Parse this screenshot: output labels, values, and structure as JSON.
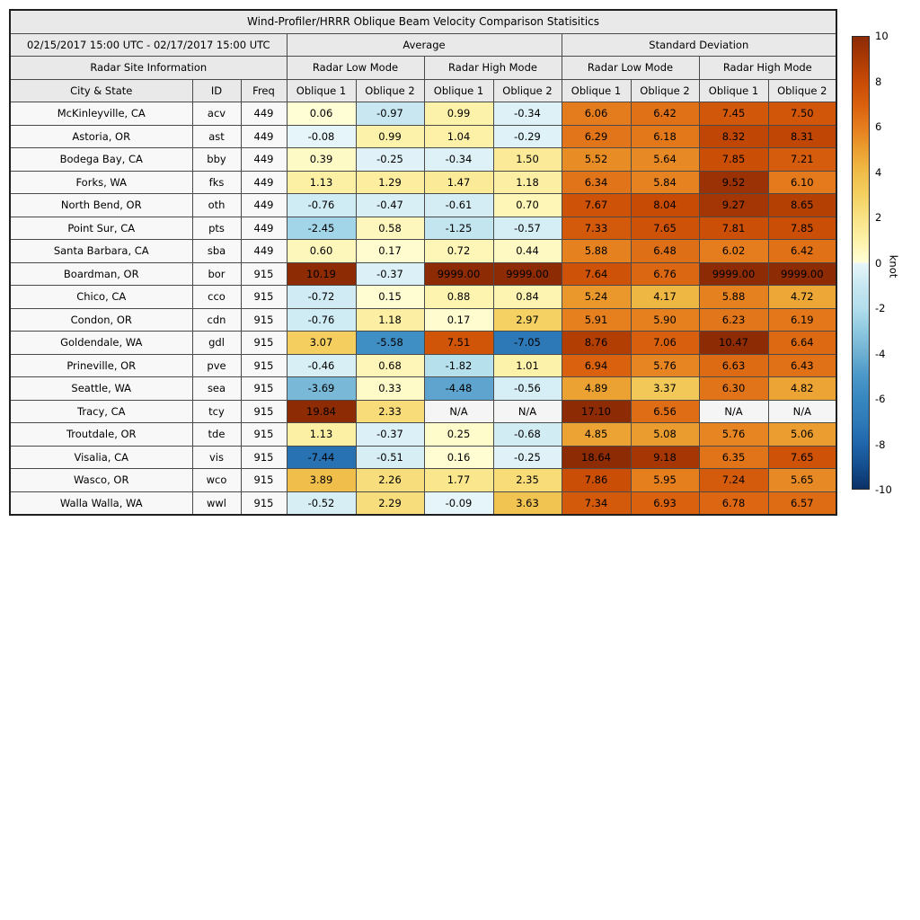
{
  "chart_data": {
    "type": "table",
    "title": "Wind-Profiler/HRRR Oblique Beam Velocity Comparison Statisitics",
    "date_range": "02/15/2017 15:00 UTC - 02/17/2017 15:00 UTC",
    "site_info_header": "Radar Site Information",
    "group_headers": {
      "average": "Average",
      "std": "Standard Deviation"
    },
    "mode_headers": [
      "Radar Low Mode",
      "Radar High Mode",
      "Radar Low Mode",
      "Radar High Mode"
    ],
    "column_headers": [
      "City & State",
      "ID",
      "Freq",
      "Oblique 1",
      "Oblique 2",
      "Oblique 1",
      "Oblique 2",
      "Oblique 1",
      "Oblique 2",
      "Oblique 1",
      "Oblique 2"
    ],
    "na_text": "N/A",
    "rows": [
      {
        "city": "McKinleyville, CA",
        "id": "acv",
        "freq": "449",
        "values": [
          "0.06",
          "-0.97",
          "0.99",
          "-0.34",
          "6.06",
          "6.42",
          "7.45",
          "7.50"
        ]
      },
      {
        "city": "Astoria, OR",
        "id": "ast",
        "freq": "449",
        "values": [
          "-0.08",
          "0.99",
          "1.04",
          "-0.29",
          "6.29",
          "6.18",
          "8.32",
          "8.31"
        ]
      },
      {
        "city": "Bodega Bay, CA",
        "id": "bby",
        "freq": "449",
        "values": [
          "0.39",
          "-0.25",
          "-0.34",
          "1.50",
          "5.52",
          "5.64",
          "7.85",
          "7.21"
        ]
      },
      {
        "city": "Forks, WA",
        "id": "fks",
        "freq": "449",
        "values": [
          "1.13",
          "1.29",
          "1.47",
          "1.18",
          "6.34",
          "5.84",
          "9.52",
          "6.10"
        ]
      },
      {
        "city": "North Bend, OR",
        "id": "oth",
        "freq": "449",
        "values": [
          "-0.76",
          "-0.47",
          "-0.61",
          "0.70",
          "7.67",
          "8.04",
          "9.27",
          "8.65"
        ]
      },
      {
        "city": "Point Sur, CA",
        "id": "pts",
        "freq": "449",
        "values": [
          "-2.45",
          "0.58",
          "-1.25",
          "-0.57",
          "7.33",
          "7.65",
          "7.81",
          "7.85"
        ]
      },
      {
        "city": "Santa Barbara, CA",
        "id": "sba",
        "freq": "449",
        "values": [
          "0.60",
          "0.17",
          "0.72",
          "0.44",
          "5.88",
          "6.48",
          "6.02",
          "6.42"
        ]
      },
      {
        "city": "Boardman, OR",
        "id": "bor",
        "freq": "915",
        "values": [
          "10.19",
          "-0.37",
          "9999.00",
          "9999.00",
          "7.64",
          "6.76",
          "9999.00",
          "9999.00"
        ]
      },
      {
        "city": "Chico, CA",
        "id": "cco",
        "freq": "915",
        "values": [
          "-0.72",
          "0.15",
          "0.88",
          "0.84",
          "5.24",
          "4.17",
          "5.88",
          "4.72"
        ]
      },
      {
        "city": "Condon, OR",
        "id": "cdn",
        "freq": "915",
        "values": [
          "-0.76",
          "1.18",
          "0.17",
          "2.97",
          "5.91",
          "5.90",
          "6.23",
          "6.19"
        ]
      },
      {
        "city": "Goldendale, WA",
        "id": "gdl",
        "freq": "915",
        "values": [
          "3.07",
          "-5.58",
          "7.51",
          "-7.05",
          "8.76",
          "7.06",
          "10.47",
          "6.64"
        ]
      },
      {
        "city": "Prineville, OR",
        "id": "pve",
        "freq": "915",
        "values": [
          "-0.46",
          "0.68",
          "-1.82",
          "1.01",
          "6.94",
          "5.76",
          "6.63",
          "6.43"
        ]
      },
      {
        "city": "Seattle, WA",
        "id": "sea",
        "freq": "915",
        "values": [
          "-3.69",
          "0.33",
          "-4.48",
          "-0.56",
          "4.89",
          "3.37",
          "6.30",
          "4.82"
        ]
      },
      {
        "city": "Tracy, CA",
        "id": "tcy",
        "freq": "915",
        "values": [
          "19.84",
          "2.33",
          "N/A",
          "N/A",
          "17.10",
          "6.56",
          "N/A",
          "N/A"
        ]
      },
      {
        "city": "Troutdale, OR",
        "id": "tde",
        "freq": "915",
        "values": [
          "1.13",
          "-0.37",
          "0.25",
          "-0.68",
          "4.85",
          "5.08",
          "5.76",
          "5.06"
        ]
      },
      {
        "city": "Visalia, CA",
        "id": "vis",
        "freq": "915",
        "values": [
          "-7.44",
          "-0.51",
          "0.16",
          "-0.25",
          "18.64",
          "9.18",
          "6.35",
          "7.65"
        ]
      },
      {
        "city": "Wasco, OR",
        "id": "wco",
        "freq": "915",
        "values": [
          "3.89",
          "2.26",
          "1.77",
          "2.35",
          "7.86",
          "5.95",
          "7.24",
          "5.65"
        ]
      },
      {
        "city": "Walla Walla, WA",
        "id": "wwl",
        "freq": "915",
        "values": [
          "-0.52",
          "2.29",
          "-0.09",
          "3.63",
          "7.34",
          "6.93",
          "6.78",
          "6.57"
        ]
      }
    ],
    "colorbar": {
      "label": "knot",
      "min": -10,
      "max": 10,
      "ticks": [
        "10",
        "8",
        "6",
        "4",
        "2",
        "0",
        "-2",
        "-4",
        "-6",
        "-8",
        "-10"
      ],
      "colormap_stops": [
        [
          -10,
          "#0a3166"
        ],
        [
          -9,
          "#144e8f"
        ],
        [
          -8,
          "#2066ac"
        ],
        [
          -7,
          "#2e7ab8"
        ],
        [
          -6,
          "#3787c0"
        ],
        [
          -5,
          "#4b98c9"
        ],
        [
          -4,
          "#6fb0d2"
        ],
        [
          -3,
          "#8ec9e0"
        ],
        [
          -2,
          "#b3deec"
        ],
        [
          -1,
          "#c7e7f1"
        ],
        [
          -0.001,
          "#e8f6fa"
        ],
        [
          0.001,
          "#ffffd8"
        ],
        [
          1,
          "#fdf2a9"
        ],
        [
          2,
          "#f8e285"
        ],
        [
          3,
          "#f4d061"
        ],
        [
          4,
          "#efbc48"
        ],
        [
          5,
          "#eb9f30"
        ],
        [
          6,
          "#e57d1d"
        ],
        [
          7,
          "#d9600e"
        ],
        [
          8,
          "#c84b05"
        ],
        [
          9,
          "#ab3a04"
        ],
        [
          10,
          "#8d2b05"
        ]
      ]
    },
    "colors": {
      "header_bg": "#e9e9e9",
      "site_cell_bg": "#f8f8f8",
      "na_cell_bg": "#f5f5f5",
      "grid_line": "#4a4a4a",
      "outer_border": "#1f1f1f"
    }
  }
}
